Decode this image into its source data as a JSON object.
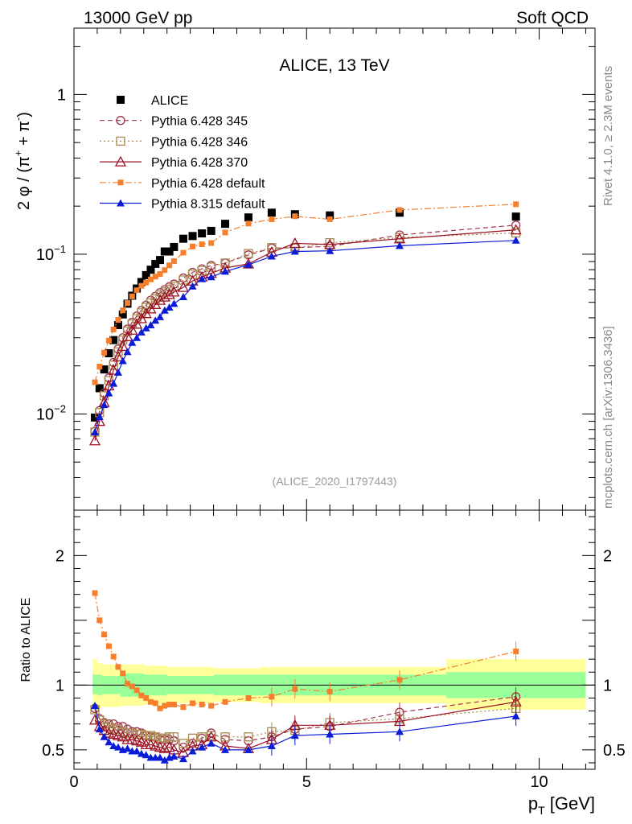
{
  "header": {
    "left": "13000 GeV pp",
    "right": "Soft QCD"
  },
  "side_labels": {
    "rivet": "Rivet 4.1.0, ≥ 2.3M events",
    "mcplots": "mcplots.cern.ch [arXiv:1306.3436]"
  },
  "colors": {
    "alice": "#000000",
    "p345": "#a0344a",
    "p346": "#a88a52",
    "p370": "#9c1024",
    "p6def": "#f57f2d",
    "p8def": "#0a1cd8",
    "band_outer": "#ffff99",
    "band_inner": "#99ff99"
  },
  "chart_data": [
    {
      "type": "line",
      "panel": "main",
      "title": "ALICE, 13 TeV",
      "ylabel_parts": [
        "2 φ / (π",
        "+",
        " + π",
        "-",
        ")"
      ],
      "xlim": [
        0,
        11.2
      ],
      "ylim": [
        0.0025,
        2.6
      ],
      "yscale": "log",
      "yticks": [
        {
          "value": 0.01,
          "base": "10",
          "exp": "−2"
        },
        {
          "value": 0.1,
          "base": "10",
          "exp": "−1"
        },
        {
          "value": 1,
          "base": "1",
          "exp": ""
        }
      ],
      "watermark": "(ALICE_2020_I1797443)",
      "x": [
        0.45,
        0.55,
        0.65,
        0.75,
        0.85,
        0.95,
        1.05,
        1.15,
        1.25,
        1.35,
        1.45,
        1.55,
        1.65,
        1.75,
        1.85,
        1.95,
        2.05,
        2.15,
        2.35,
        2.55,
        2.75,
        2.95,
        3.25,
        3.75,
        4.25,
        4.75,
        5.5,
        7.0,
        9.5
      ],
      "series": [
        {
          "name": "ALICE",
          "key": "alice",
          "marker": "square-filled",
          "line": "none",
          "values": [
            0.0095,
            0.0145,
            0.019,
            0.024,
            0.029,
            0.036,
            0.042,
            0.049,
            0.055,
            0.061,
            0.067,
            0.074,
            0.08,
            0.087,
            0.092,
            0.104,
            0.104,
            0.111,
            0.125,
            0.13,
            0.135,
            0.14,
            0.155,
            0.17,
            0.182,
            0.178,
            0.175,
            0.182,
            0.172
          ]
        },
        {
          "name": "Pythia 6.428 345",
          "key": "p345",
          "marker": "circle-open",
          "line": "dashed",
          "values": [
            0.0078,
            0.0105,
            0.0135,
            0.0168,
            0.021,
            0.0255,
            0.03,
            0.034,
            0.0375,
            0.041,
            0.0445,
            0.048,
            0.0515,
            0.0545,
            0.0575,
            0.06,
            0.0625,
            0.065,
            0.071,
            0.077,
            0.081,
            0.085,
            0.088,
            0.099,
            0.109,
            0.11,
            0.112,
            0.132,
            0.152
          ]
        },
        {
          "name": "Pythia 6.428 346",
          "key": "p346",
          "marker": "square-open",
          "line": "dotted",
          "values": [
            0.0077,
            0.0102,
            0.013,
            0.0162,
            0.0202,
            0.0245,
            0.029,
            0.033,
            0.0365,
            0.0395,
            0.043,
            0.0465,
            0.0495,
            0.0525,
            0.0555,
            0.058,
            0.0605,
            0.063,
            0.069,
            0.075,
            0.079,
            0.083,
            0.088,
            0.101,
            0.11,
            0.109,
            0.118,
            0.127,
            0.136
          ]
        },
        {
          "name": "Pythia 6.428 370",
          "key": "p370",
          "marker": "triangle-open",
          "line": "solid",
          "values": [
            0.0068,
            0.009,
            0.0118,
            0.015,
            0.0188,
            0.0228,
            0.0265,
            0.0305,
            0.0335,
            0.0365,
            0.0395,
            0.0425,
            0.0455,
            0.0485,
            0.0515,
            0.054,
            0.056,
            0.058,
            0.062,
            0.068,
            0.072,
            0.076,
            0.082,
            0.087,
            0.103,
            0.117,
            0.115,
            0.125,
            0.142
          ]
        },
        {
          "name": "Pythia 6.428 default",
          "key": "p6def",
          "marker": "square-filled-small",
          "line": "dashdot",
          "values": [
            0.0158,
            0.0198,
            0.0242,
            0.0288,
            0.0338,
            0.0388,
            0.0445,
            0.0495,
            0.0545,
            0.0595,
            0.0635,
            0.0665,
            0.0695,
            0.0725,
            0.0752,
            0.0795,
            0.0852,
            0.0905,
            0.1022,
            0.1118,
            0.1155,
            0.1175,
            0.1368,
            0.1555,
            0.1655,
            0.1728,
            0.1655,
            0.1892,
            0.2055
          ]
        },
        {
          "name": "Pythia 8.315 default",
          "key": "p8def",
          "marker": "triangle-filled",
          "line": "solid",
          "values": [
            0.0077,
            0.0096,
            0.0114,
            0.0135,
            0.0155,
            0.0182,
            0.0215,
            0.0245,
            0.028,
            0.03,
            0.0325,
            0.0345,
            0.036,
            0.0385,
            0.0405,
            0.0445,
            0.0465,
            0.049,
            0.054,
            0.063,
            0.07,
            0.072,
            0.078,
            0.086,
            0.097,
            0.104,
            0.105,
            0.113,
            0.122
          ]
        }
      ]
    },
    {
      "type": "line",
      "panel": "ratio",
      "xlabel": "p",
      "xlabel_sub": "T",
      "xlabel_unit": " [GeV]",
      "ylabel": "Ratio to ALICE",
      "xlim": [
        0,
        11.2
      ],
      "ylim": [
        0.35,
        2.35
      ],
      "xticks": [
        "0",
        "5",
        "10"
      ],
      "yticks": [
        "0.5",
        "1",
        "2"
      ],
      "band": {
        "edges": [
          0.4,
          0.5,
          0.6,
          1.0,
          1.5,
          2.0,
          3.0,
          4.0,
          8.0,
          11.0
        ],
        "outer": [
          [
            0.8,
            1.2
          ],
          [
            0.82,
            1.17
          ],
          [
            0.83,
            1.16
          ],
          [
            0.84,
            1.16
          ],
          [
            0.85,
            1.15
          ],
          [
            0.86,
            1.14
          ],
          [
            0.87,
            1.13
          ],
          [
            0.86,
            1.14
          ],
          [
            0.81,
            1.2
          ]
        ],
        "inner": [
          [
            0.93,
            1.08
          ],
          [
            0.92,
            1.08
          ],
          [
            0.93,
            1.07
          ],
          [
            0.91,
            1.09
          ],
          [
            0.92,
            1.08
          ],
          [
            0.93,
            1.07
          ],
          [
            0.92,
            1.08
          ],
          [
            0.92,
            1.08
          ],
          [
            0.9,
            1.1
          ]
        ]
      },
      "x": [
        0.45,
        0.55,
        0.65,
        0.75,
        0.85,
        0.95,
        1.05,
        1.15,
        1.25,
        1.35,
        1.45,
        1.55,
        1.65,
        1.75,
        1.85,
        1.95,
        2.05,
        2.15,
        2.35,
        2.55,
        2.75,
        2.95,
        3.25,
        3.75,
        4.25,
        4.75,
        5.5,
        7.0,
        9.5
      ],
      "series": [
        {
          "key": "p345",
          "values": [
            0.82,
            0.74,
            0.71,
            0.7,
            0.7,
            0.68,
            0.68,
            0.66,
            0.64,
            0.64,
            0.63,
            0.61,
            0.6,
            0.6,
            0.58,
            0.58,
            0.58,
            0.57,
            0.52,
            0.55,
            0.59,
            0.63,
            0.58,
            0.57,
            0.6,
            0.66,
            0.68,
            0.79,
            0.91
          ]
        },
        {
          "key": "p346",
          "values": [
            0.81,
            0.73,
            0.7,
            0.68,
            0.66,
            0.66,
            0.64,
            0.63,
            0.63,
            0.62,
            0.62,
            0.61,
            0.61,
            0.6,
            0.59,
            0.59,
            0.6,
            0.6,
            0.55,
            0.59,
            0.6,
            0.61,
            0.6,
            0.6,
            0.64,
            0.65,
            0.71,
            0.74,
            0.82
          ]
        },
        {
          "key": "p370",
          "values": [
            0.73,
            0.68,
            0.65,
            0.63,
            0.62,
            0.61,
            0.6,
            0.58,
            0.58,
            0.57,
            0.56,
            0.54,
            0.54,
            0.53,
            0.52,
            0.51,
            0.52,
            0.5,
            0.48,
            0.53,
            0.54,
            0.6,
            0.53,
            0.51,
            0.58,
            0.69,
            0.69,
            0.72,
            0.87
          ]
        },
        {
          "key": "p6def",
          "values": [
            1.71,
            1.5,
            1.39,
            1.3,
            1.22,
            1.14,
            1.09,
            1.01,
            0.99,
            0.96,
            0.92,
            0.9,
            0.87,
            0.86,
            0.82,
            0.84,
            0.85,
            0.85,
            0.83,
            0.86,
            0.85,
            0.84,
            0.87,
            0.9,
            0.91,
            0.97,
            0.95,
            1.04,
            1.26
          ]
        },
        {
          "key": "p8def",
          "values": [
            0.84,
            0.66,
            0.6,
            0.56,
            0.53,
            0.52,
            0.5,
            0.51,
            0.49,
            0.49,
            0.47,
            0.46,
            0.44,
            0.44,
            0.44,
            0.42,
            0.44,
            0.45,
            0.43,
            0.49,
            0.52,
            0.55,
            0.5,
            0.5,
            0.53,
            0.61,
            0.62,
            0.64,
            0.76
          ]
        }
      ]
    }
  ]
}
